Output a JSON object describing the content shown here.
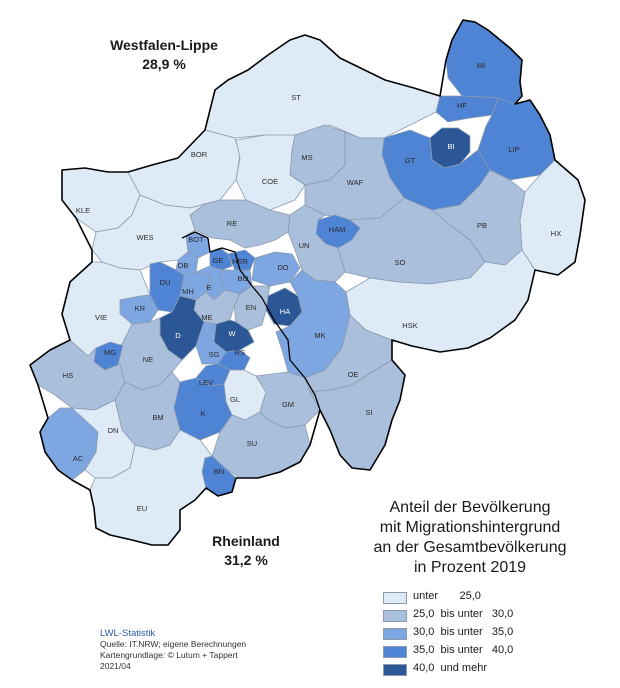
{
  "regions": {
    "westfalen_lippe": {
      "name": "Westfalen-Lippe",
      "value": "28,9 %"
    },
    "rheinland": {
      "name": "Rheinland",
      "value": "31,2 %"
    }
  },
  "legend": {
    "title_lines": [
      "Anteil der Bevölkerung",
      "mit Migrationshintergrund",
      "an der Gesamtbevölkerung",
      "in Prozent 2019"
    ],
    "classes": [
      {
        "label": "unter       25,0",
        "color": "#deebf7"
      },
      {
        "label": "25,0  bis unter   30,0",
        "color": "#a9bfdc"
      },
      {
        "label": "30,0  bis unter   35,0",
        "color": "#7ea6e0"
      },
      {
        "label": "35,0  bis unter   40,0",
        "color": "#4f83d4"
      },
      {
        "label": "40,0  und mehr",
        "color": "#2c5797"
      }
    ]
  },
  "source": {
    "brand": "LWL-Statistik",
    "lines": [
      "Quelle: IT.NRW; eigene Berechnungen",
      "Kartengrundlage: © Lutum + Tappert",
      "2021/04"
    ]
  },
  "districts": [
    {
      "code": "MI",
      "class": 3
    },
    {
      "code": "HF",
      "class": 3
    },
    {
      "code": "LIP",
      "class": 3
    },
    {
      "code": "BI",
      "class": 4
    },
    {
      "code": "GT",
      "class": 3
    },
    {
      "code": "ST",
      "class": 0
    },
    {
      "code": "BOR",
      "class": 0
    },
    {
      "code": "MS",
      "class": 1
    },
    {
      "code": "COE",
      "class": 0
    },
    {
      "code": "WAF",
      "class": 1
    },
    {
      "code": "HX",
      "class": 0
    },
    {
      "code": "PB",
      "class": 1
    },
    {
      "code": "SO",
      "class": 1
    },
    {
      "code": "HSK",
      "class": 0
    },
    {
      "code": "HAM",
      "class": 3
    },
    {
      "code": "UN",
      "class": 1
    },
    {
      "code": "RE",
      "class": 1
    },
    {
      "code": "BOT",
      "class": 2
    },
    {
      "code": "GE",
      "class": 3
    },
    {
      "code": "HER",
      "class": 3
    },
    {
      "code": "BO",
      "class": 2
    },
    {
      "code": "DO",
      "class": 2
    },
    {
      "code": "HA",
      "class": 4
    },
    {
      "code": "EN",
      "class": 1
    },
    {
      "code": "MK",
      "class": 2
    },
    {
      "code": "OE",
      "class": 1
    },
    {
      "code": "SI",
      "class": 1
    },
    {
      "code": "KLE",
      "class": 0
    },
    {
      "code": "WES",
      "class": 0
    },
    {
      "code": "OB",
      "class": 2
    },
    {
      "code": "DU",
      "class": 3
    },
    {
      "code": "MH",
      "class": 2
    },
    {
      "code": "E",
      "class": 2
    },
    {
      "code": "KR",
      "class": 2
    },
    {
      "code": "VIE",
      "class": 0
    },
    {
      "code": "ME",
      "class": 1
    },
    {
      "code": "D",
      "class": 4
    },
    {
      "code": "W",
      "class": 4
    },
    {
      "code": "MG",
      "class": 3
    },
    {
      "code": "SG",
      "class": 2
    },
    {
      "code": "RS",
      "class": 3
    },
    {
      "code": "NE",
      "class": 1
    },
    {
      "code": "LEV",
      "class": 3
    },
    {
      "code": "HS",
      "class": 1
    },
    {
      "code": "GL",
      "class": 0
    },
    {
      "code": "GM",
      "class": 1
    },
    {
      "code": "K",
      "class": 3
    },
    {
      "code": "BM",
      "class": 1
    },
    {
      "code": "AC",
      "class": 2
    },
    {
      "code": "DN",
      "class": 0
    },
    {
      "code": "SU",
      "class": 1
    },
    {
      "code": "BN",
      "class": 3
    },
    {
      "code": "EU",
      "class": 0
    }
  ]
}
